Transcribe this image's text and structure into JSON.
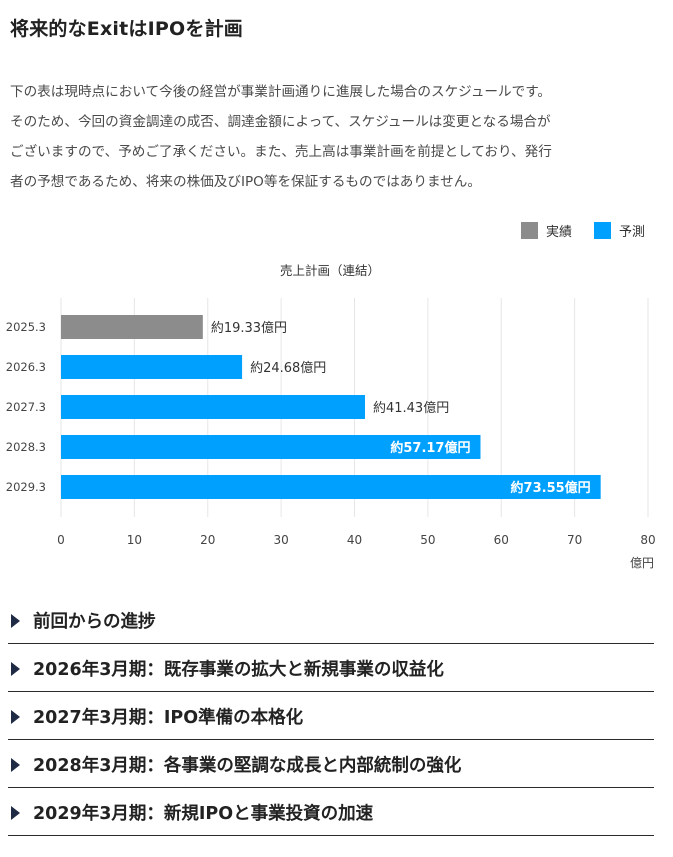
{
  "page": {
    "title": "将来的なExitはIPOを計画",
    "description": [
      "下の表は現時点において今後の経営が事業計画通りに進展した場合のスケジュールです。",
      "そのため、今回の資金調達の成否、調達金額によって、スケジュールは変更となる場合が",
      "ございますので、予めご了承ください。また、売上高は事業計画を前提としており、発行",
      "者の予想であるため、将来の株価及びIPO等を保証するものではありません。"
    ]
  },
  "colors": {
    "actual": "#8c8c8c",
    "forecast": "#00a0ff",
    "grid": "#e6e6e6",
    "arrow": "#1f2a44"
  },
  "chart_data": {
    "type": "bar",
    "orientation": "horizontal",
    "title": "売上計画（連結）",
    "categories": [
      "2025.3",
      "2026.3",
      "2027.3",
      "2028.3",
      "2029.3"
    ],
    "values": [
      19.33,
      24.68,
      41.43,
      57.17,
      73.55
    ],
    "data_labels": [
      "約19.33億円",
      "約24.68億円",
      "約41.43億円",
      "約57.17億円",
      "約73.55億円"
    ],
    "label_inside": [
      false,
      false,
      false,
      true,
      true
    ],
    "bar_series": [
      "actual",
      "forecast",
      "forecast",
      "forecast",
      "forecast"
    ],
    "series": [
      {
        "name": "実績",
        "key": "actual",
        "color": "#8c8c8c"
      },
      {
        "name": "予測",
        "key": "forecast",
        "color": "#00a0ff"
      }
    ],
    "xlim": [
      0,
      80
    ],
    "xticks": [
      0,
      10,
      20,
      30,
      40,
      50,
      60,
      70,
      80
    ],
    "xlabel": "億円",
    "ylabel": "",
    "grid": true,
    "legend_position": "top-right"
  },
  "accordion": [
    {
      "label": "前回からの進捗"
    },
    {
      "label": "2026年3月期：既存事業の拡大と新規事業の収益化"
    },
    {
      "label": "2027年3月期：IPO準備の本格化"
    },
    {
      "label": "2028年3月期：各事業の堅調な成長と内部統制の強化"
    },
    {
      "label": "2029年3月期：新規IPOと事業投資の加速"
    }
  ]
}
